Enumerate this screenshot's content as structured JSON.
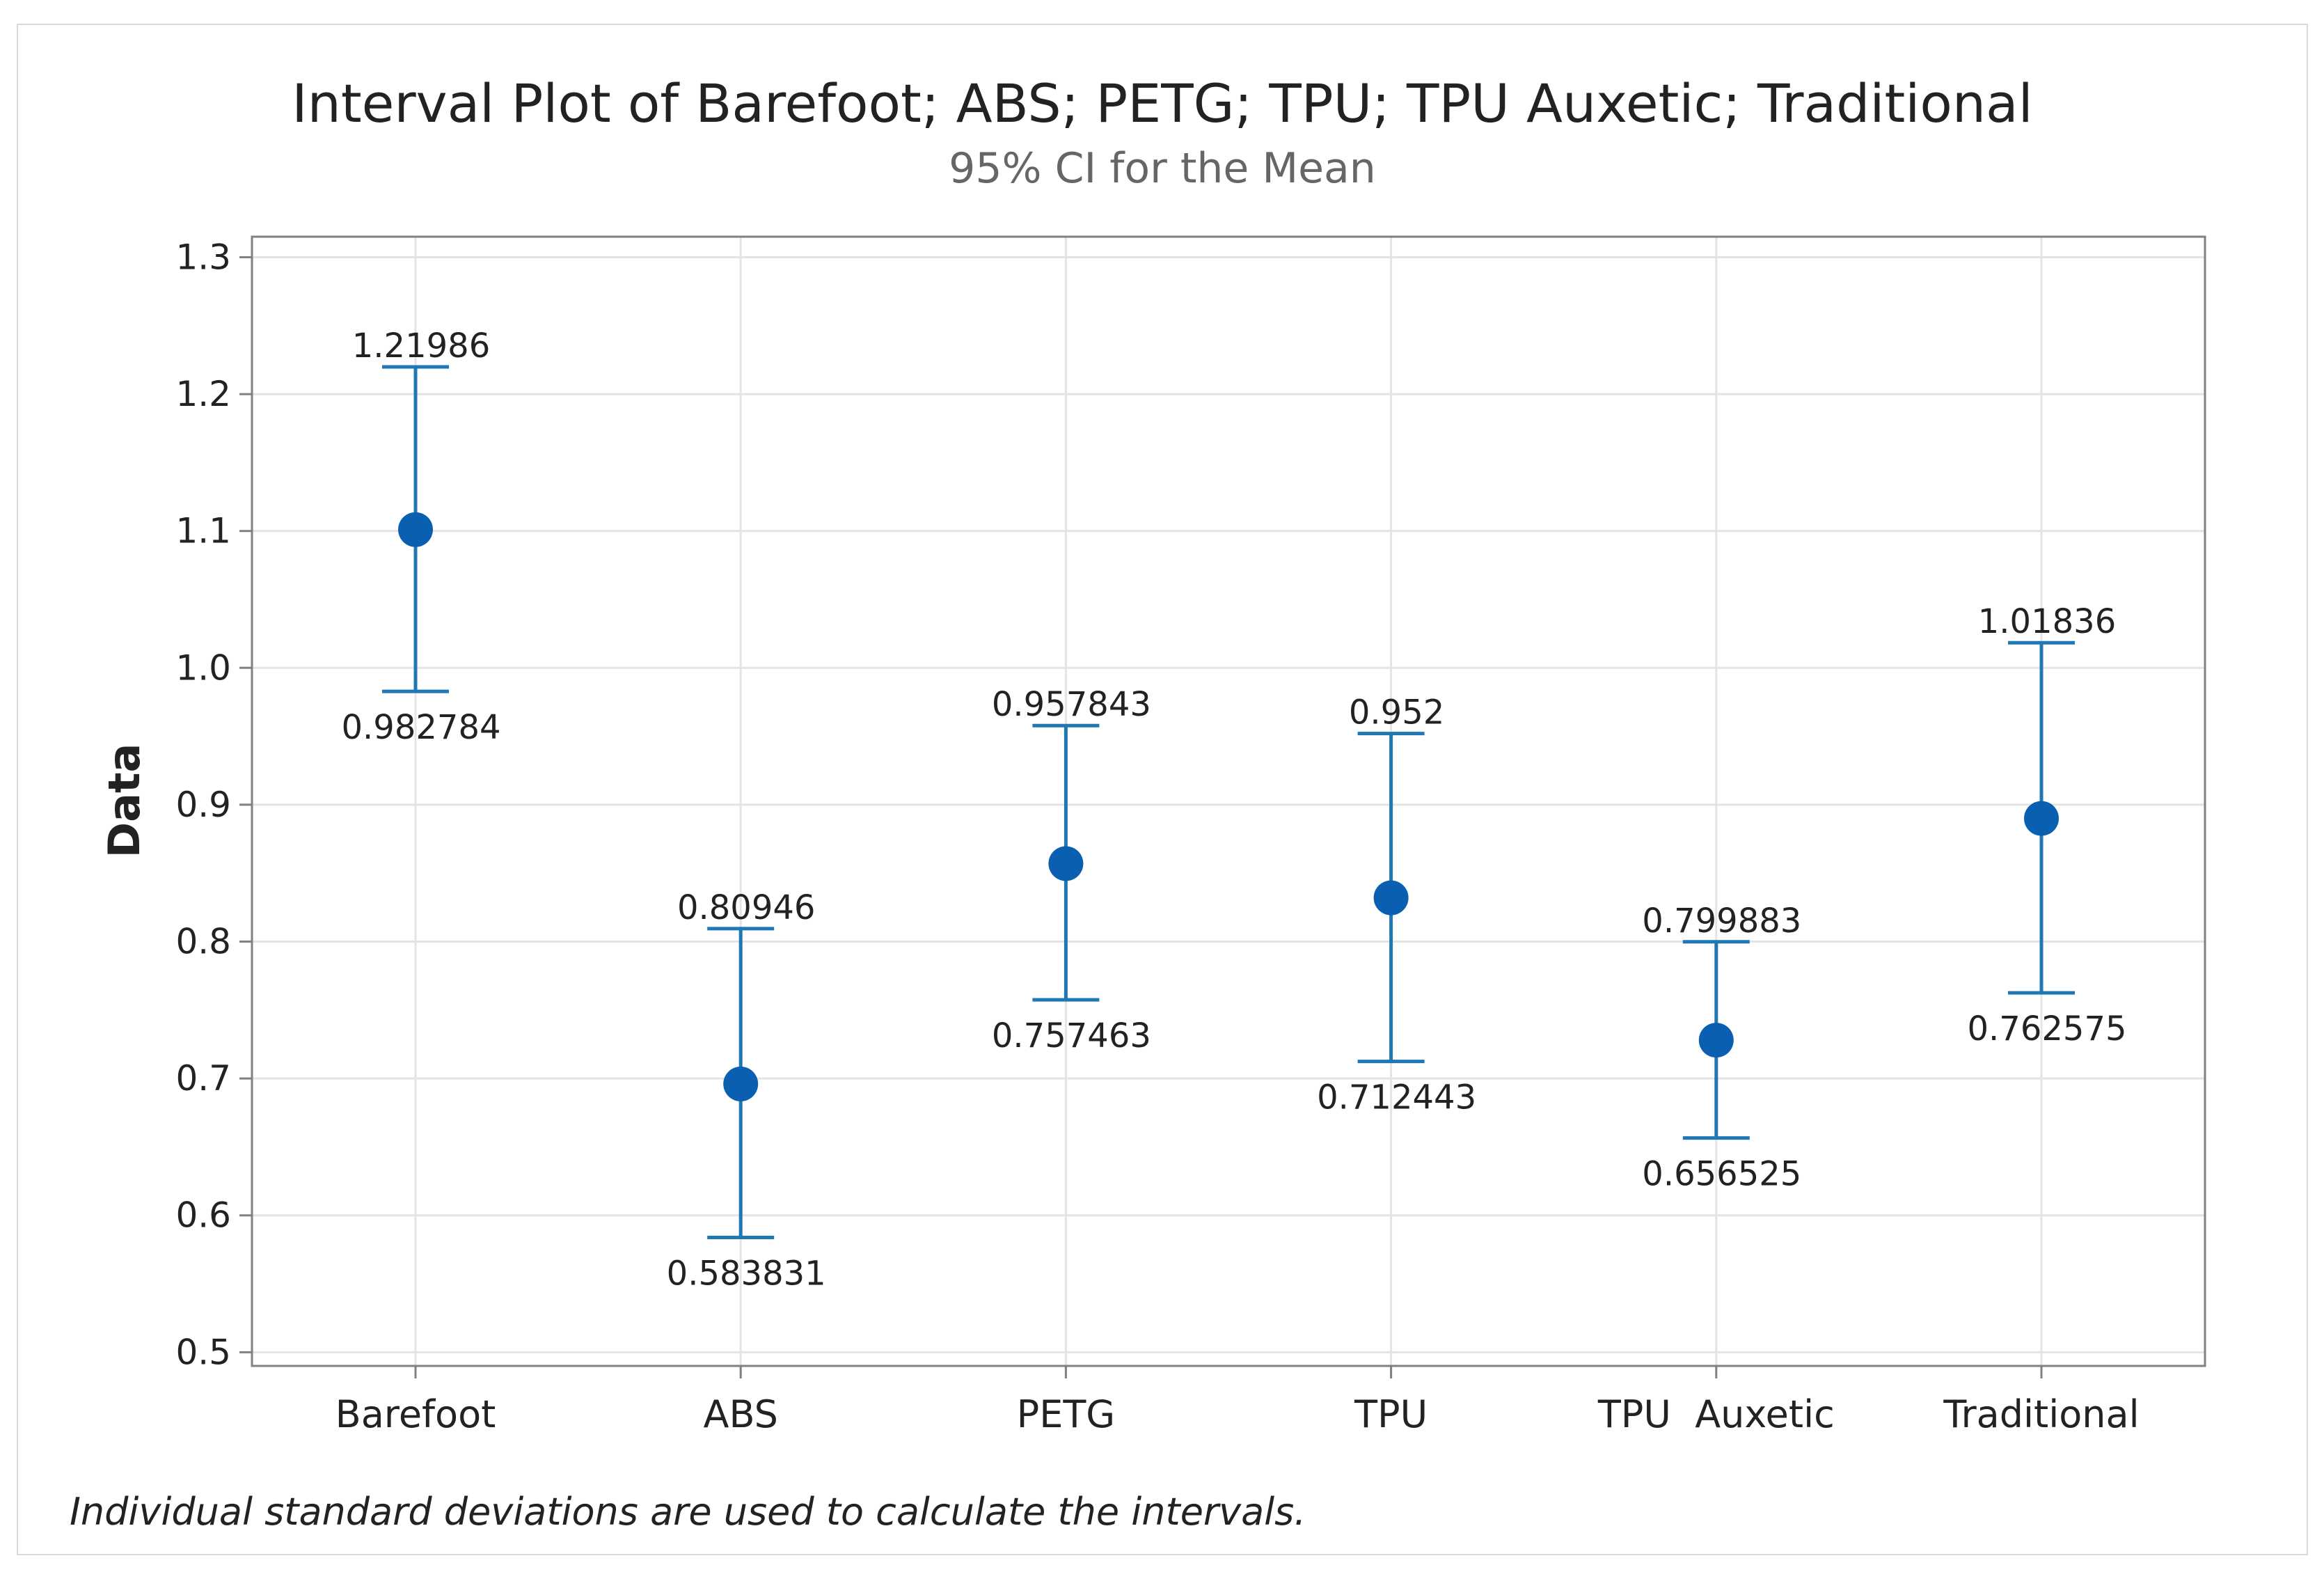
{
  "chart_data": {
    "type": "interval",
    "title": "Interval Plot of Barefoot; ABS; PETG; TPU; TPU  Auxetic; Traditional",
    "subtitle": "95% CI for the Mean",
    "xlabel": "",
    "ylabel": "Data",
    "ylim": [
      0.5,
      1.3
    ],
    "yticks": [
      "0.5",
      "0.6",
      "0.7",
      "0.8",
      "0.9",
      "1.0",
      "1.1",
      "1.2",
      "1.3"
    ],
    "ytick_values": [
      0.5,
      0.6,
      0.7,
      0.8,
      0.9,
      1.0,
      1.1,
      1.2,
      1.3
    ],
    "categories": [
      "Barefoot",
      "ABS",
      "PETG",
      "TPU",
      "TPU  Auxetic",
      "Traditional"
    ],
    "means": [
      1.101,
      0.696,
      0.857,
      0.832,
      0.728,
      0.89
    ],
    "upper": [
      1.21986,
      0.80946,
      0.957843,
      0.952,
      0.799883,
      1.01836
    ],
    "lower": [
      0.982784,
      0.583831,
      0.757463,
      0.712443,
      0.656525,
      0.762575
    ],
    "upper_labels": [
      "1.21986",
      "0.80946",
      "0.957843",
      "0.952",
      "0.799883",
      "1.01836"
    ],
    "lower_labels": [
      "0.982784",
      "0.583831",
      "0.757463",
      "0.712443",
      "0.656525",
      "0.762575"
    ],
    "grid": true,
    "footnote": "Individual standard deviations are used to calculate the intervals.",
    "colors": {
      "series": "#0a5fb0",
      "whisker": "#1f77b4",
      "grid": "#e4e4e4",
      "axis": "#808080"
    }
  }
}
